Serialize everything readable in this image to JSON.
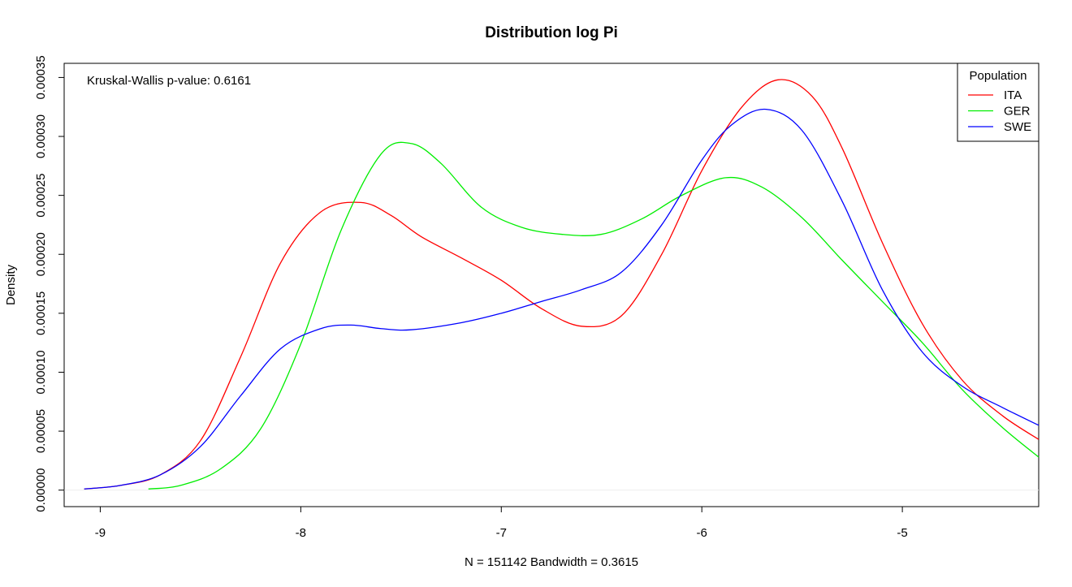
{
  "chart_data": {
    "type": "line",
    "title": "Distribution log Pi",
    "xlabel": "N = 151142   Bandwidth = 0.3615",
    "ylabel": "Density",
    "xlim": [
      -9.18,
      -4.32
    ],
    "ylim": [
      -1.4e-05,
      0.000362
    ],
    "x_ticks": [
      -9,
      -8,
      -7,
      -6,
      -5
    ],
    "x_tick_labels": [
      "-9",
      "-8",
      "-7",
      "-6",
      "-5"
    ],
    "y_ticks": [
      0,
      5e-05,
      0.0001,
      0.00015,
      0.0002,
      0.00025,
      0.0003,
      0.00035
    ],
    "y_tick_labels": [
      "0.00000",
      "0.00005",
      "0.00010",
      "0.00015",
      "0.00020",
      "0.00025",
      "0.00030",
      "0.00035"
    ],
    "annotation": "Kruskal-Wallis p-value: 0.6161",
    "legend": {
      "title": "Population",
      "position": "top-right"
    },
    "series": [
      {
        "name": "ITA",
        "color": "#ff0000",
        "points": [
          [
            -9.08,
            1e-06
          ],
          [
            -8.9,
            4e-06
          ],
          [
            -8.7,
            1.3e-05
          ],
          [
            -8.5,
            4.2e-05
          ],
          [
            -8.3,
            0.000113
          ],
          [
            -8.1,
            0.000193
          ],
          [
            -7.9,
            0.000236
          ],
          [
            -7.7,
            0.000244
          ],
          [
            -7.55,
            0.000233
          ],
          [
            -7.4,
            0.000215
          ],
          [
            -7.2,
            0.000197
          ],
          [
            -7.0,
            0.000178
          ],
          [
            -6.8,
            0.000154
          ],
          [
            -6.6,
            0.000139
          ],
          [
            -6.4,
            0.000148
          ],
          [
            -6.2,
            0.0002
          ],
          [
            -6.0,
            0.000271
          ],
          [
            -5.8,
            0.000325
          ],
          [
            -5.62,
            0.000348
          ],
          [
            -5.45,
            0.000334
          ],
          [
            -5.3,
            0.00029
          ],
          [
            -5.1,
            0.00021
          ],
          [
            -4.9,
            0.000141
          ],
          [
            -4.7,
            9.3e-05
          ],
          [
            -4.5,
            6.3e-05
          ],
          [
            -4.32,
            4.3e-05
          ]
        ]
      },
      {
        "name": "GER",
        "color": "#00ee00",
        "points": [
          [
            -8.76,
            1e-06
          ],
          [
            -8.6,
            4e-06
          ],
          [
            -8.4,
            1.8e-05
          ],
          [
            -8.2,
            5.2e-05
          ],
          [
            -8.0,
            0.000124
          ],
          [
            -7.8,
            0.00022
          ],
          [
            -7.6,
            0.000285
          ],
          [
            -7.45,
            0.000294
          ],
          [
            -7.3,
            0.000277
          ],
          [
            -7.1,
            0.00024
          ],
          [
            -6.9,
            0.000223
          ],
          [
            -6.7,
            0.000217
          ],
          [
            -6.5,
            0.000217
          ],
          [
            -6.3,
            0.00023
          ],
          [
            -6.1,
            0.00025
          ],
          [
            -5.88,
            0.000265
          ],
          [
            -5.7,
            0.000257
          ],
          [
            -5.5,
            0.000231
          ],
          [
            -5.3,
            0.000195
          ],
          [
            -5.1,
            0.00016
          ],
          [
            -4.9,
            0.000125
          ],
          [
            -4.7,
            8.5e-05
          ],
          [
            -4.5,
            5.3e-05
          ],
          [
            -4.32,
            2.8e-05
          ]
        ]
      },
      {
        "name": "SWE",
        "color": "#0000ff",
        "points": [
          [
            -9.08,
            1e-06
          ],
          [
            -8.9,
            4e-06
          ],
          [
            -8.7,
            1.3e-05
          ],
          [
            -8.5,
            3.7e-05
          ],
          [
            -8.3,
            8e-05
          ],
          [
            -8.1,
            0.00012
          ],
          [
            -7.9,
            0.000137
          ],
          [
            -7.75,
            0.00014
          ],
          [
            -7.6,
            0.000137
          ],
          [
            -7.45,
            0.000136
          ],
          [
            -7.2,
            0.000142
          ],
          [
            -7.0,
            0.00015
          ],
          [
            -6.8,
            0.00016
          ],
          [
            -6.6,
            0.00017
          ],
          [
            -6.4,
            0.000185
          ],
          [
            -6.2,
            0.000225
          ],
          [
            -6.0,
            0.00028
          ],
          [
            -5.85,
            0.00031
          ],
          [
            -5.68,
            0.000323
          ],
          [
            -5.5,
            0.000305
          ],
          [
            -5.3,
            0.000245
          ],
          [
            -5.1,
            0.00017
          ],
          [
            -4.9,
            0.000117
          ],
          [
            -4.7,
            8.8e-05
          ],
          [
            -4.5,
            7e-05
          ],
          [
            -4.32,
            5.5e-05
          ]
        ]
      }
    ]
  }
}
